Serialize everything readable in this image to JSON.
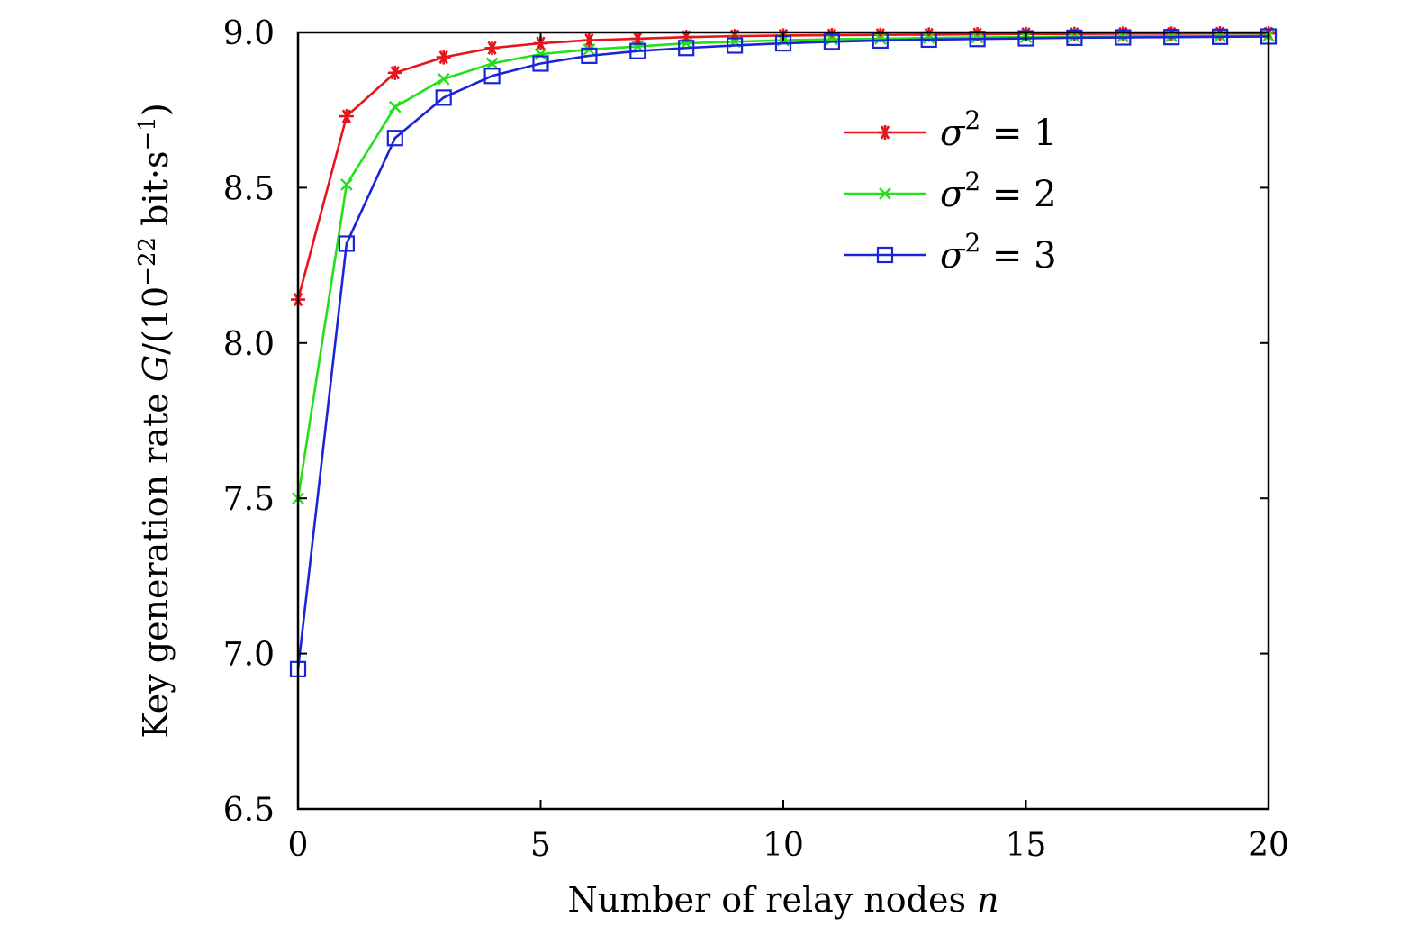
{
  "chart_data": {
    "type": "line",
    "title": "",
    "xlabel_prefix": "Number of relay nodes ",
    "xlabel_var": "n",
    "ylabel_prefix": "Key generation rate ",
    "ylabel_var": "G",
    "ylabel_unit_open": "/(10",
    "ylabel_unit_exp": "−22",
    "ylabel_unit_mid": " bit·s",
    "ylabel_unit_exp2": "−1",
    "ylabel_unit_close": ")",
    "xlim": [
      0,
      20
    ],
    "ylim": [
      6.5,
      9.0
    ],
    "xticks": [
      "0",
      "5",
      "10",
      "15",
      "20"
    ],
    "xtick_values": [
      0,
      5,
      10,
      15,
      20
    ],
    "yticks": [
      "6.5",
      "7.0",
      "7.5",
      "8.0",
      "8.5",
      "9.0"
    ],
    "ytick_values": [
      6.5,
      7.0,
      7.5,
      8.0,
      8.5,
      9.0
    ],
    "grid": false,
    "legend_position": "top-right",
    "x": [
      0,
      1,
      2,
      3,
      4,
      5,
      6,
      7,
      8,
      9,
      10,
      11,
      12,
      13,
      14,
      15,
      16,
      17,
      18,
      19,
      20
    ],
    "series": [
      {
        "name_var": "σ",
        "name_exp": "2",
        "name_rest": " = 1",
        "color": "#e8141c",
        "marker": "asterisk",
        "values": [
          8.14,
          8.73,
          8.87,
          8.92,
          8.95,
          8.965,
          8.975,
          8.98,
          8.985,
          8.988,
          8.99,
          8.991,
          8.992,
          8.993,
          8.994,
          8.995,
          8.995,
          8.996,
          8.996,
          8.997,
          8.997
        ]
      },
      {
        "name_var": "σ",
        "name_exp": "2",
        "name_rest": " = 2",
        "color": "#22e01a",
        "marker": "x",
        "values": [
          7.5,
          8.51,
          8.76,
          8.85,
          8.9,
          8.93,
          8.945,
          8.955,
          8.965,
          8.97,
          8.975,
          8.978,
          8.98,
          8.982,
          8.984,
          8.985,
          8.986,
          8.987,
          8.988,
          8.988,
          8.989
        ]
      },
      {
        "name_var": "σ",
        "name_exp": "2",
        "name_rest": " = 3",
        "color": "#1a24d8",
        "marker": "square",
        "values": [
          6.95,
          8.32,
          8.66,
          8.79,
          8.86,
          8.9,
          8.925,
          8.94,
          8.95,
          8.958,
          8.965,
          8.97,
          8.974,
          8.977,
          8.979,
          8.981,
          8.983,
          8.984,
          8.985,
          8.986,
          8.987
        ]
      }
    ]
  }
}
